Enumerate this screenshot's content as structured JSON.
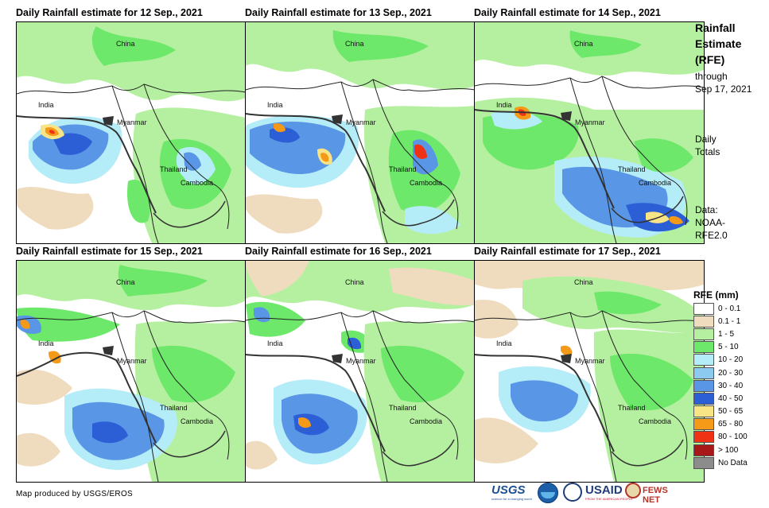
{
  "panels": [
    {
      "title": "Daily Rainfall estimate for 12 Sep., 2021"
    },
    {
      "title": "Daily Rainfall estimate for 13 Sep., 2021"
    },
    {
      "title": "Daily Rainfall estimate for 14 Sep., 2021"
    },
    {
      "title": "Daily Rainfall estimate for 15 Sep., 2021"
    },
    {
      "title": "Daily Rainfall estimate for 16 Sep., 2021"
    },
    {
      "title": "Daily Rainfall estimate for 17 Sep., 2021"
    }
  ],
  "map_labels": {
    "china": "China",
    "india": "India",
    "myanmar": "Myanmar",
    "thailand": "Thailand",
    "cambodia": "Cambodia"
  },
  "sidebar": {
    "title_line1": "Rainfall",
    "title_line2": "Estimate",
    "title_line3": "(RFE)",
    "through_line1": "through",
    "through_line2": "Sep 17, 2021",
    "daily_line1": "Daily",
    "daily_line2": "Totals",
    "data_line1": "Data:",
    "data_line2": "NOAA-",
    "data_line3": "RFE2.0"
  },
  "legend": {
    "title": "RFE (mm)",
    "items": [
      {
        "label": "0 - 0.1",
        "color": "#ffffff"
      },
      {
        "label": "0.1 - 1",
        "color": "#efdcbe"
      },
      {
        "label": "1 - 5",
        "color": "#b5f0a0"
      },
      {
        "label": "5 - 10",
        "color": "#6ee86a"
      },
      {
        "label": "10 - 20",
        "color": "#b4ecf8"
      },
      {
        "label": "20 - 30",
        "color": "#8ccaf0"
      },
      {
        "label": "30 - 40",
        "color": "#5a96e6"
      },
      {
        "label": "40 - 50",
        "color": "#2c5fd6"
      },
      {
        "label": "50 - 65",
        "color": "#f8e484"
      },
      {
        "label": "65 - 80",
        "color": "#f59a18"
      },
      {
        "label": "80 - 100",
        "color": "#f03214"
      },
      {
        "label": "> 100",
        "color": "#a81818"
      },
      {
        "label": "No Data",
        "color": "#8c8c8c"
      }
    ]
  },
  "footer": {
    "credit": "Map produced by USGS/EROS"
  },
  "logos": {
    "usgs": "USGS",
    "usgs_tagline": "science for a changing world",
    "usaid": "USAID",
    "usaid_tagline": "FROM THE AMERICAN PEOPLE",
    "fewsnet": "FEWS NET"
  }
}
